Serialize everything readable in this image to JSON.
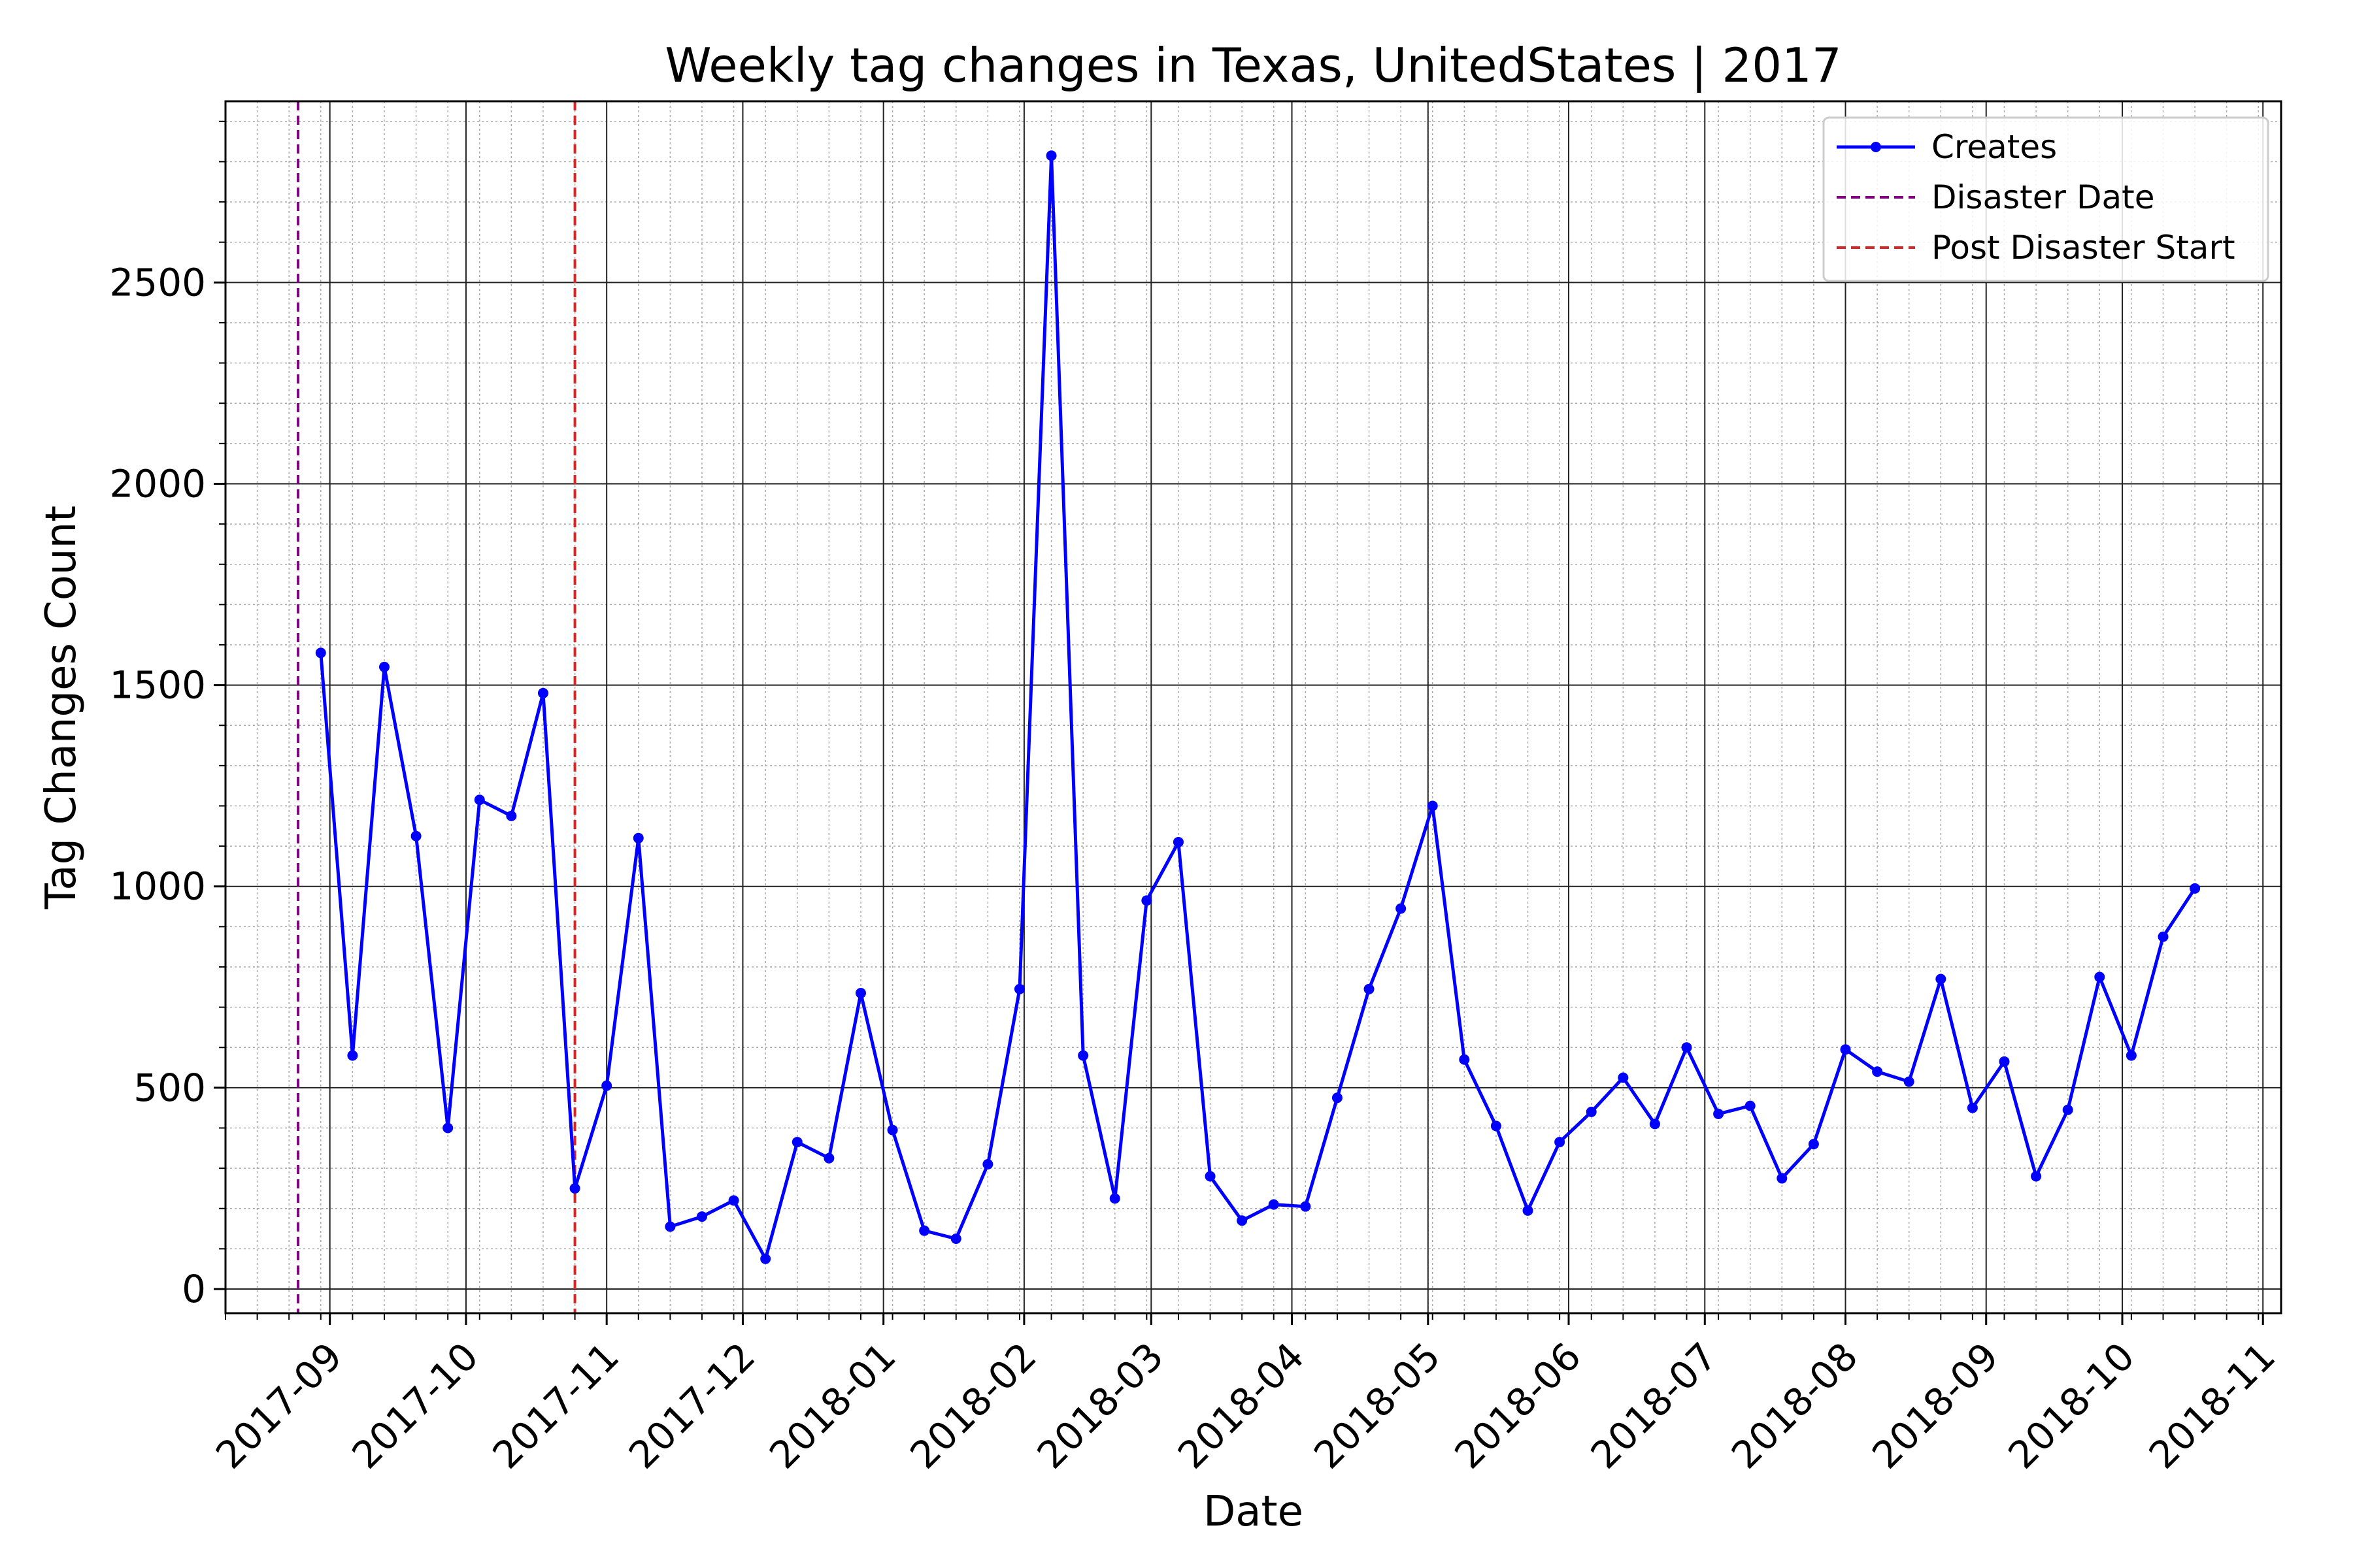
{
  "chart_data": {
    "type": "line",
    "title": "Weekly tag changes in Texas, UnitedStates | 2017",
    "xlabel": "Date",
    "ylabel": "Tag Changes Count",
    "xlim": [
      "2017-08-09",
      "2018-11-05"
    ],
    "ylim": [
      -60,
      2950
    ],
    "x_ticks": [
      "2017-09-01",
      "2017-10-01",
      "2017-11-01",
      "2017-12-01",
      "2018-01-01",
      "2018-02-01",
      "2018-03-01",
      "2018-04-01",
      "2018-05-01",
      "2018-06-01",
      "2018-07-01",
      "2018-08-01",
      "2018-09-01",
      "2018-10-01",
      "2018-11-01"
    ],
    "x_tick_labels": [
      "2017-09",
      "2017-10",
      "2017-11",
      "2017-12",
      "2018-01",
      "2018-02",
      "2018-03",
      "2018-04",
      "2018-05",
      "2018-06",
      "2018-07",
      "2018-08",
      "2018-09",
      "2018-10",
      "2018-11"
    ],
    "y_ticks": [
      0,
      500,
      1000,
      1500,
      2000,
      2500
    ],
    "y_tick_labels": [
      "0",
      "500",
      "1000",
      "1500",
      "2000",
      "2500"
    ],
    "grid": true,
    "legend_position": "top-right",
    "series": [
      {
        "name": "Creates",
        "color": "#0000ff",
        "style": "line-with-dots",
        "x": [
          "2017-08-30",
          "2017-09-06",
          "2017-09-13",
          "2017-09-20",
          "2017-09-27",
          "2017-10-04",
          "2017-10-11",
          "2017-10-18",
          "2017-10-25",
          "2017-11-01",
          "2017-11-08",
          "2017-11-15",
          "2017-11-22",
          "2017-11-29",
          "2017-12-06",
          "2017-12-13",
          "2017-12-20",
          "2017-12-27",
          "2018-01-03",
          "2018-01-10",
          "2018-01-17",
          "2018-01-24",
          "2018-01-31",
          "2018-02-07",
          "2018-02-14",
          "2018-02-21",
          "2018-02-28",
          "2018-03-07",
          "2018-03-14",
          "2018-03-21",
          "2018-03-28",
          "2018-04-04",
          "2018-04-11",
          "2018-04-18",
          "2018-04-25",
          "2018-05-02",
          "2018-05-09",
          "2018-05-16",
          "2018-05-23",
          "2018-05-30",
          "2018-06-06",
          "2018-06-13",
          "2018-06-20",
          "2018-06-27",
          "2018-07-04",
          "2018-07-11",
          "2018-07-18",
          "2018-07-25",
          "2018-08-01",
          "2018-08-08",
          "2018-08-15",
          "2018-08-22",
          "2018-08-29",
          "2018-09-05",
          "2018-09-12",
          "2018-09-19",
          "2018-09-26",
          "2018-10-03",
          "2018-10-10",
          "2018-10-17"
        ],
        "values": [
          1580,
          580,
          1545,
          1125,
          400,
          1215,
          1175,
          1480,
          250,
          505,
          1120,
          155,
          180,
          220,
          75,
          365,
          325,
          735,
          395,
          145,
          125,
          310,
          745,
          2815,
          580,
          225,
          965,
          1110,
          280,
          170,
          210,
          205,
          475,
          745,
          945,
          1200,
          570,
          405,
          195,
          365,
          440,
          525,
          410,
          600,
          435,
          455,
          275,
          360,
          595,
          540,
          515,
          770,
          450,
          565,
          280,
          445,
          775,
          580,
          875,
          995
        ]
      }
    ],
    "vlines": [
      {
        "name": "Disaster Date",
        "x": "2017-08-25",
        "color": "#800080",
        "style": "dashed"
      },
      {
        "name": "Post Disaster Start",
        "x": "2017-10-25",
        "color": "#d62728",
        "style": "dashed"
      }
    ]
  }
}
